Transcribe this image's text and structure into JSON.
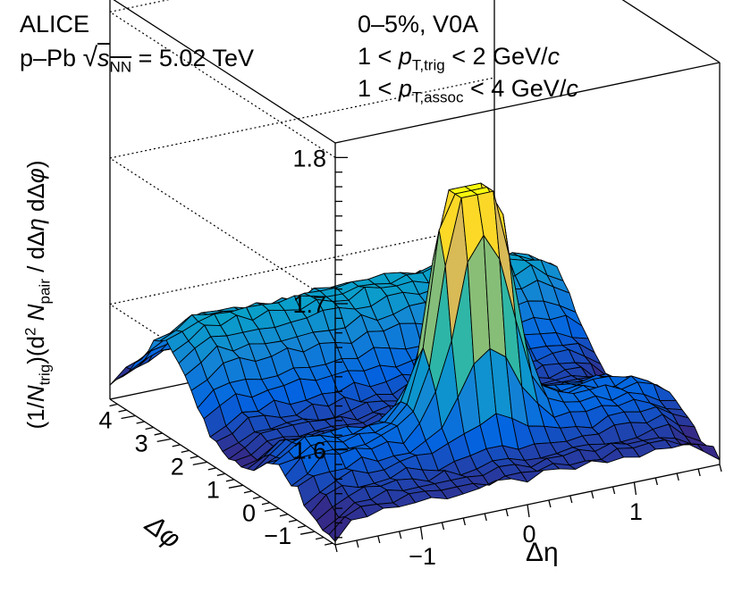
{
  "header": {
    "experiment": "ALICE",
    "system": "p–Pb",
    "energy_value": "= 5.02 TeV",
    "centrality": "0–5%, V0A",
    "trig_lower": "1 <",
    "trig_sub": "T,trig",
    "trig_upper": "< 2 GeV/",
    "assoc_lower": "1 <",
    "assoc_sub": "T,assoc",
    "assoc_upper": "< 4 GeV/",
    "p_symbol": "p",
    "c_symbol": "c",
    "s_symbol": "s",
    "s_sub": "NN"
  },
  "axes": {
    "x_label": "Δη",
    "y_label": "Δφ",
    "z_label_prefix": "(1/",
    "z_label_ntrig": "N",
    "z_label_ntrig_sub": "trig",
    "z_label_mid": ")(d",
    "z_label_sq": "2",
    "z_label_npair": "N",
    "z_label_npair_sub": "pair",
    "z_label_suffix": " / dΔ",
    "z_label_eta": "η",
    "z_label_d": " dΔ",
    "z_label_phi": "φ",
    "z_label_close": ")"
  },
  "chart_data": {
    "type": "surface",
    "title": "",
    "xlabel": "Δη",
    "ylabel": "Δφ",
    "zlabel": "(1/N_trig)(d²N_pair / dΔη dΔφ)",
    "x_range": [
      -1.8,
      1.8
    ],
    "y_range": [
      -1.5708,
      4.7124
    ],
    "z_range": [
      1.535,
      1.81
    ],
    "z_clip_max": 1.725,
    "x_ticks": [
      "−1",
      "0",
      "1"
    ],
    "y_ticks": [
      "−1",
      "0",
      "1",
      "2",
      "3",
      "4"
    ],
    "z_ticks": [
      "1.6",
      "1.7",
      "1.8"
    ],
    "x_tick_values": [
      -1,
      0,
      1
    ],
    "y_tick_values": [
      -1,
      0,
      1,
      2,
      3,
      4
    ],
    "z_tick_values": [
      1.6,
      1.7,
      1.8
    ],
    "grid_nx": 24,
    "grid_ny": 36,
    "model": {
      "baseline": 1.552,
      "near_side_ridge_amplitude": 0.022,
      "away_side_ridge_amplitude": 0.058,
      "away_side_eta_curvature": 0.004,
      "jet_peak_amplitude": 0.26,
      "jet_peak_sigma_eta": 0.25,
      "jet_peak_sigma_phi": 0.3
    },
    "colors": [
      "#352a87",
      "#0363e1",
      "#1485d4",
      "#06a7c6",
      "#38b99e",
      "#92bf73",
      "#d9ba56",
      "#fcce2e",
      "#f9fb0e"
    ]
  }
}
